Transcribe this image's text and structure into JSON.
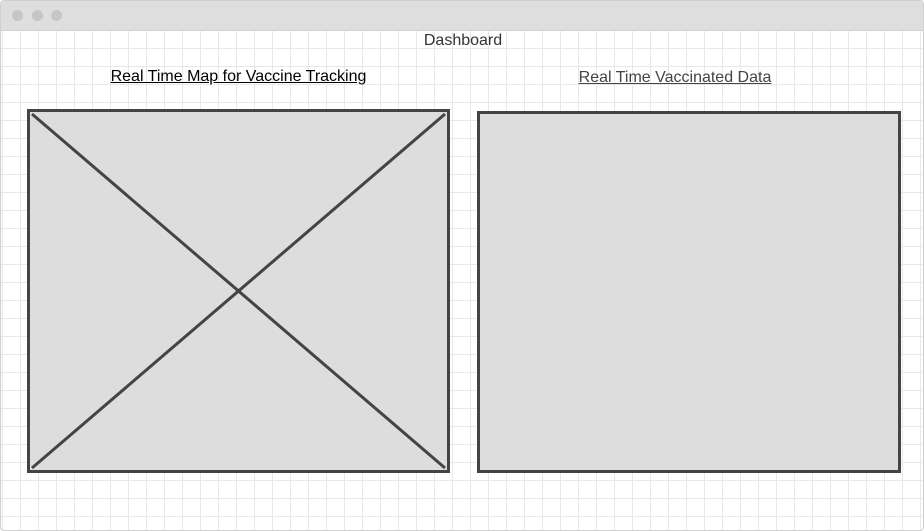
{
  "window": {
    "controls": [
      "window-close-icon",
      "window-minimize-icon",
      "window-maximize-icon"
    ]
  },
  "page": {
    "title": "Dashboard"
  },
  "map_panel": {
    "heading": "Real Time Map for Vaccine Tracking",
    "placeholder_icon": "image-placeholder-icon"
  },
  "data_panel": {
    "heading": "Real Time Vaccinated Data"
  },
  "colors": {
    "titlebar": "#dedede",
    "panel_fill": "#dddddd",
    "panel_border": "#444444"
  }
}
